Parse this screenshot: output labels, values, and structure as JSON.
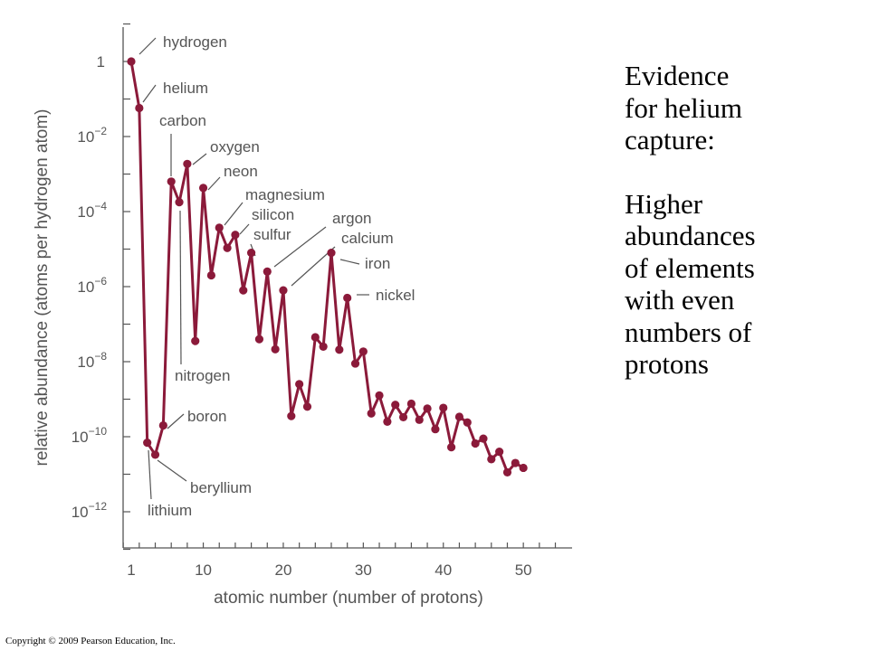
{
  "chart_data": {
    "type": "line",
    "xlabel": "atomic number (number of protons)",
    "ylabel": "relative abundance (atoms per hydrogen atom)",
    "xlim": [
      0,
      55
    ],
    "ylim": [
      -13,
      1.5
    ],
    "log_y": true,
    "x_ticks": [
      1,
      10,
      20,
      30,
      40,
      50
    ],
    "y_ticks": [
      {
        "exp": 0,
        "label": "1"
      },
      {
        "exp": -2,
        "label": "10",
        "sup": "−2"
      },
      {
        "exp": -4,
        "label": "10",
        "sup": "−4"
      },
      {
        "exp": -6,
        "label": "10",
        "sup": "−6"
      },
      {
        "exp": -8,
        "label": "10",
        "sup": "−8"
      },
      {
        "exp": -10,
        "label": "10",
        "sup": "−10"
      },
      {
        "exp": -12,
        "label": "10",
        "sup": "−12"
      }
    ],
    "line_color": "#8b1a3a",
    "series": [
      {
        "x": [
          1,
          2,
          3,
          4,
          5,
          6,
          7,
          8,
          9,
          10,
          11,
          12,
          13,
          14,
          15,
          16,
          17,
          18,
          19,
          20,
          21,
          22,
          23,
          24,
          25,
          26,
          27,
          28,
          29,
          30,
          31,
          32,
          33,
          34,
          35,
          36,
          37,
          38,
          39,
          40,
          41,
          42,
          43,
          44,
          45,
          46,
          47,
          48,
          49,
          50
        ],
        "log10_y": [
          0,
          -1.24,
          -10.16,
          -10.48,
          -9.7,
          -3.2,
          -3.75,
          -2.73,
          -7.45,
          -3.37,
          -5.7,
          -4.43,
          -4.97,
          -4.62,
          -6.1,
          -5.1,
          -7.4,
          -5.6,
          -7.67,
          -6.1,
          -9.45,
          -8.6,
          -9.2,
          -7.35,
          -7.6,
          -5.1,
          -7.68,
          -6.3,
          -8.05,
          -7.73,
          -9.38,
          -8.9,
          -9.6,
          -9.15,
          -9.48,
          -9.12,
          -9.55,
          -9.25,
          -9.8,
          -9.23,
          -10.28,
          -9.47,
          -9.62,
          -10.18,
          -10.05,
          -10.6,
          -10.4,
          -10.95,
          -10.7,
          -10.83
        ]
      }
    ],
    "annotations": [
      {
        "label": "hydrogen",
        "z": 1
      },
      {
        "label": "helium",
        "z": 2
      },
      {
        "label": "lithium",
        "z": 3
      },
      {
        "label": "beryllium",
        "z": 4
      },
      {
        "label": "boron",
        "z": 5
      },
      {
        "label": "carbon",
        "z": 6
      },
      {
        "label": "nitrogen",
        "z": 7
      },
      {
        "label": "oxygen",
        "z": 8
      },
      {
        "label": "neon",
        "z": 10
      },
      {
        "label": "magnesium",
        "z": 12
      },
      {
        "label": "silicon",
        "z": 14
      },
      {
        "label": "sulfur",
        "z": 16
      },
      {
        "label": "argon",
        "z": 18
      },
      {
        "label": "calcium",
        "z": 20
      },
      {
        "label": "iron",
        "z": 26
      },
      {
        "label": "nickel",
        "z": 28
      }
    ]
  },
  "side_text": {
    "heading": [
      "Evidence",
      "for helium",
      "capture:"
    ],
    "body": [
      "Higher",
      "abundances",
      "of elements",
      "with even",
      "numbers of",
      "protons"
    ]
  },
  "copyright": "Copyright © 2009 Pearson Education, Inc."
}
